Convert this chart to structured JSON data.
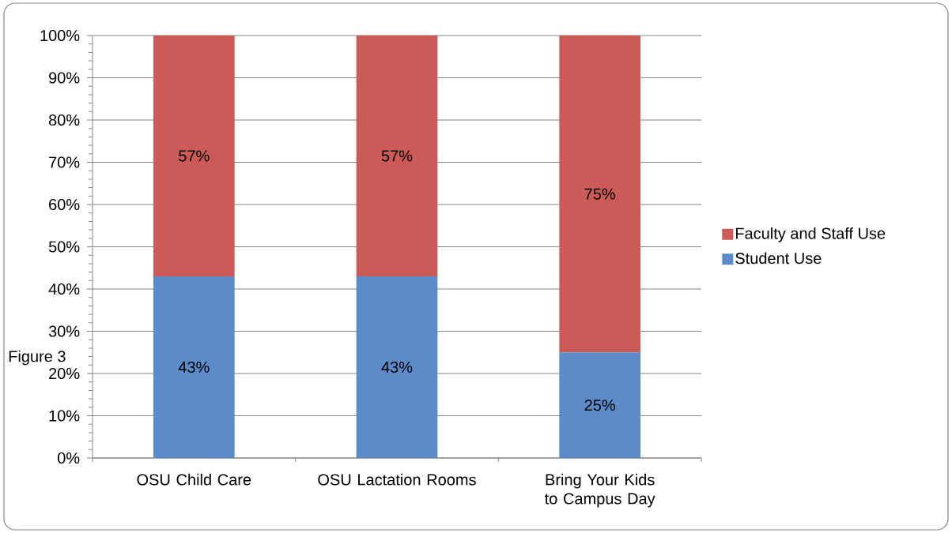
{
  "chart_data": {
    "type": "bar",
    "stacked": true,
    "categories": [
      "OSU Child Care",
      "OSU Lactation Rooms",
      "Bring Your Kids to Campus Day"
    ],
    "series": [
      {
        "name": "Student Use",
        "color": "#5b8bc9",
        "values": [
          43,
          43,
          25
        ],
        "value_labels": [
          "43%",
          "43%",
          "25%"
        ]
      },
      {
        "name": "Faculty and Staff Use",
        "color": "#cc5a56",
        "values": [
          57,
          57,
          75
        ],
        "value_labels": [
          "57%",
          "57%",
          "75%"
        ]
      }
    ],
    "ylim": [
      0,
      100
    ],
    "yticks": [
      {
        "value": 0,
        "label": "0%"
      },
      {
        "value": 10,
        "label": "10%"
      },
      {
        "value": 20,
        "label": "20%"
      },
      {
        "value": 30,
        "label": "30%"
      },
      {
        "value": 40,
        "label": "40%"
      },
      {
        "value": 50,
        "label": "50%"
      },
      {
        "value": 60,
        "label": "60%"
      },
      {
        "value": 70,
        "label": "70%"
      },
      {
        "value": 80,
        "label": "80%"
      },
      {
        "value": 90,
        "label": "90%"
      },
      {
        "value": 100,
        "label": "100%"
      }
    ],
    "grid": "y",
    "legend": "right",
    "annotations": [
      "Figure 3"
    ]
  }
}
